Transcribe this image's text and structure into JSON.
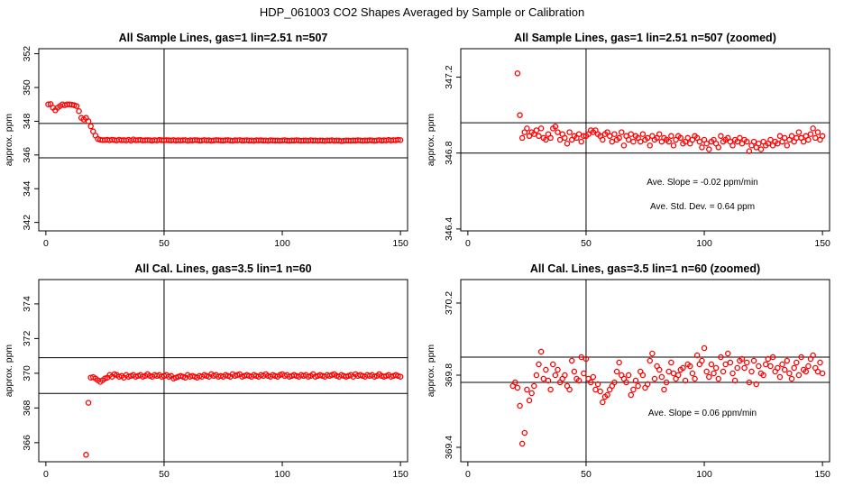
{
  "page_title": "HDP_061003  CO2 Shapes Averaged by Sample or Calibration",
  "colors": {
    "points": "#ff0000",
    "lines": "#000000",
    "axes": "#000000"
  },
  "chart_data": [
    {
      "type": "scatter",
      "title": "All Sample Lines, gas=1 lin=2.51 n=507",
      "ylabel": "approx. ppm",
      "xlim": [
        -3,
        153
      ],
      "ylim": [
        341.5,
        352.3
      ],
      "xticks": [
        0,
        50,
        100,
        150
      ],
      "yticks": [
        342,
        344,
        346,
        348,
        350,
        352
      ],
      "vline": 50,
      "hlines": [
        347.87,
        345.83
      ],
      "annotations": [],
      "x": [
        1,
        2,
        3,
        4,
        5,
        6,
        7,
        8,
        9,
        10,
        11,
        12,
        13,
        14,
        15,
        16,
        17,
        18,
        19,
        20,
        21,
        22,
        23,
        24,
        25,
        26,
        27,
        28,
        29,
        30,
        31,
        32,
        33,
        34,
        35,
        36,
        37,
        38,
        39,
        40,
        41,
        42,
        43,
        44,
        45,
        46,
        47,
        48,
        49,
        50,
        51,
        52,
        53,
        54,
        55,
        56,
        57,
        58,
        59,
        60,
        61,
        62,
        63,
        64,
        65,
        66,
        67,
        68,
        69,
        70,
        71,
        72,
        73,
        74,
        75,
        76,
        77,
        78,
        79,
        80,
        81,
        82,
        83,
        84,
        85,
        86,
        87,
        88,
        89,
        90,
        91,
        92,
        93,
        94,
        95,
        96,
        97,
        98,
        99,
        100,
        101,
        102,
        103,
        104,
        105,
        106,
        107,
        108,
        109,
        110,
        111,
        112,
        113,
        114,
        115,
        116,
        117,
        118,
        119,
        120,
        121,
        122,
        123,
        124,
        125,
        126,
        127,
        128,
        129,
        130,
        131,
        132,
        133,
        134,
        135,
        136,
        137,
        138,
        139,
        140,
        141,
        142,
        143,
        144,
        145,
        146,
        147,
        148,
        149,
        150
      ],
      "y": [
        349.0,
        349.02,
        348.8,
        348.65,
        348.8,
        348.9,
        349.0,
        348.95,
        349.0,
        349.0,
        348.98,
        348.95,
        348.9,
        348.6,
        348.2,
        348.1,
        348.2,
        348.0,
        347.7,
        347.4,
        347.15,
        346.95,
        346.9,
        346.88,
        346.88,
        346.9,
        346.87,
        346.9,
        346.88,
        346.86,
        346.9,
        346.87,
        346.88,
        346.86,
        346.9,
        346.85,
        346.92,
        346.87,
        346.88,
        346.89,
        346.86,
        346.87,
        346.88,
        346.87,
        346.85,
        346.88,
        346.86,
        346.89,
        346.87,
        346.87,
        346.88,
        346.87,
        346.86,
        346.88,
        346.85,
        346.87,
        346.86,
        346.87,
        346.88,
        346.84,
        346.87,
        346.86,
        346.88,
        346.87,
        346.85,
        346.86,
        346.88,
        346.86,
        346.87,
        346.84,
        346.86,
        346.88,
        346.87,
        346.86,
        346.85,
        346.87,
        346.88,
        346.86,
        346.84,
        346.87,
        346.86,
        346.88,
        346.85,
        346.86,
        346.87,
        346.85,
        346.86,
        346.84,
        346.87,
        346.86,
        346.87,
        346.85,
        346.86,
        346.84,
        346.87,
        346.86,
        346.85,
        346.86,
        346.84,
        346.86,
        346.87,
        346.85,
        346.84,
        346.86,
        346.85,
        346.87,
        346.86,
        346.84,
        346.85,
        346.86,
        346.84,
        346.87,
        346.85,
        346.86,
        346.84,
        346.86,
        346.85,
        346.83,
        346.86,
        346.85,
        346.87,
        346.84,
        346.86,
        346.85,
        346.82,
        346.84,
        346.86,
        346.85,
        346.84,
        346.86,
        346.85,
        346.87,
        346.86,
        346.84,
        346.86,
        346.85,
        346.87,
        346.86,
        346.84,
        346.86,
        346.88,
        346.85,
        346.87,
        346.86,
        346.89,
        346.86,
        346.88,
        346.87,
        346.9,
        346.88
      ]
    },
    {
      "type": "scatter",
      "title": "All Sample Lines, gas=1 lin=2.51 n=507 (zoomed)",
      "ylabel": "approx. ppm",
      "xlim": [
        -3,
        153
      ],
      "ylim": [
        346.39,
        347.35
      ],
      "xticks": [
        0,
        50,
        100,
        150
      ],
      "yticks": [
        346.4,
        346.8,
        347.2
      ],
      "vline": 50,
      "hlines": [
        346.96,
        346.8
      ],
      "annotations": [
        "Ave. Slope =  -0.02  ppm/min",
        "Ave. Std. Dev. =  0.64  ppm"
      ],
      "x": [
        21,
        22,
        23,
        24,
        25,
        26,
        27,
        28,
        29,
        30,
        31,
        32,
        33,
        34,
        35,
        36,
        37,
        38,
        39,
        40,
        41,
        42,
        43,
        44,
        45,
        46,
        47,
        48,
        49,
        50,
        51,
        52,
        53,
        54,
        55,
        56,
        57,
        58,
        59,
        60,
        61,
        62,
        63,
        64,
        65,
        66,
        67,
        68,
        69,
        70,
        71,
        72,
        73,
        74,
        75,
        76,
        77,
        78,
        79,
        80,
        81,
        82,
        83,
        84,
        85,
        86,
        87,
        88,
        89,
        90,
        91,
        92,
        93,
        94,
        95,
        96,
        97,
        98,
        99,
        100,
        101,
        102,
        103,
        104,
        105,
        106,
        107,
        108,
        109,
        110,
        111,
        112,
        113,
        114,
        115,
        116,
        117,
        118,
        119,
        120,
        121,
        122,
        123,
        124,
        125,
        126,
        127,
        128,
        129,
        130,
        131,
        132,
        133,
        134,
        135,
        136,
        137,
        138,
        139,
        140,
        141,
        142,
        143,
        144,
        145,
        146,
        147,
        148,
        149,
        150
      ],
      "y": [
        347.22,
        347.0,
        346.88,
        346.91,
        346.93,
        346.89,
        346.91,
        346.9,
        346.92,
        346.89,
        346.93,
        346.88,
        346.87,
        346.9,
        346.88,
        346.93,
        346.94,
        346.91,
        346.87,
        346.9,
        346.88,
        346.85,
        346.91,
        346.87,
        346.89,
        346.88,
        346.9,
        346.86,
        346.89,
        346.89,
        346.9,
        346.92,
        346.91,
        346.92,
        346.9,
        346.89,
        346.87,
        346.9,
        346.91,
        346.89,
        346.86,
        346.9,
        346.87,
        346.88,
        346.91,
        346.84,
        346.89,
        346.87,
        346.9,
        346.86,
        346.89,
        346.88,
        346.86,
        346.9,
        346.87,
        346.88,
        346.84,
        346.89,
        346.87,
        346.88,
        346.9,
        346.86,
        346.88,
        346.87,
        346.86,
        346.89,
        346.84,
        346.87,
        346.89,
        346.88,
        346.85,
        346.86,
        346.88,
        346.85,
        346.87,
        346.89,
        346.88,
        346.86,
        346.83,
        346.87,
        346.85,
        346.82,
        346.86,
        346.87,
        346.85,
        346.83,
        346.89,
        346.86,
        346.87,
        346.88,
        346.86,
        346.84,
        346.87,
        346.86,
        346.88,
        346.85,
        346.87,
        346.86,
        346.81,
        346.84,
        346.86,
        346.83,
        346.85,
        346.82,
        346.86,
        346.84,
        346.85,
        346.87,
        346.84,
        346.86,
        346.85,
        346.89,
        346.86,
        346.88,
        346.84,
        346.87,
        346.89,
        346.86,
        346.88,
        346.91,
        346.88,
        346.86,
        346.89,
        346.87,
        346.9,
        346.93,
        346.88,
        346.91,
        346.87,
        346.89
      ]
    },
    {
      "type": "scatter",
      "title": "All Cal. Lines, gas=3.5 lin=1 n=60",
      "ylabel": "approx. ppm",
      "xlim": [
        -3,
        153
      ],
      "ylim": [
        364.9,
        375.4
      ],
      "xticks": [
        0,
        50,
        100,
        150
      ],
      "yticks": [
        366,
        368,
        370,
        372,
        374
      ],
      "vline": 50,
      "hlines": [
        370.9,
        368.84
      ],
      "annotations": [],
      "x": [
        17,
        18,
        19,
        20,
        21,
        22,
        23,
        24,
        25,
        26,
        27,
        28,
        29,
        30,
        31,
        32,
        33,
        34,
        35,
        36,
        37,
        38,
        39,
        40,
        41,
        42,
        43,
        44,
        45,
        46,
        47,
        48,
        49,
        50,
        51,
        52,
        53,
        54,
        55,
        56,
        57,
        58,
        59,
        60,
        61,
        62,
        63,
        64,
        65,
        66,
        67,
        68,
        69,
        70,
        71,
        72,
        73,
        74,
        75,
        76,
        77,
        78,
        79,
        80,
        81,
        82,
        83,
        84,
        85,
        86,
        87,
        88,
        89,
        90,
        91,
        92,
        93,
        94,
        95,
        96,
        97,
        98,
        99,
        100,
        101,
        102,
        103,
        104,
        105,
        106,
        107,
        108,
        109,
        110,
        111,
        112,
        113,
        114,
        115,
        116,
        117,
        118,
        119,
        120,
        121,
        122,
        123,
        124,
        125,
        126,
        127,
        128,
        129,
        130,
        131,
        132,
        133,
        134,
        135,
        136,
        137,
        138,
        139,
        140,
        141,
        142,
        143,
        144,
        145,
        146,
        147,
        148,
        149,
        150
      ],
      "y": [
        365.3,
        368.3,
        369.75,
        369.78,
        369.7,
        369.6,
        369.5,
        369.6,
        369.7,
        369.75,
        369.9,
        369.8,
        369.95,
        369.9,
        369.8,
        369.85,
        369.75,
        369.9,
        369.8,
        369.85,
        369.9,
        369.8,
        369.85,
        369.9,
        369.8,
        369.85,
        369.95,
        369.85,
        369.8,
        369.9,
        369.85,
        369.9,
        369.8,
        369.85,
        369.9,
        369.8,
        369.85,
        369.7,
        369.75,
        369.8,
        369.85,
        369.8,
        369.75,
        369.9,
        369.8,
        369.85,
        369.8,
        369.75,
        369.85,
        369.8,
        369.9,
        369.85,
        369.8,
        369.95,
        369.85,
        369.9,
        369.8,
        369.85,
        369.8,
        369.9,
        369.85,
        369.8,
        369.95,
        369.85,
        369.9,
        369.95,
        369.8,
        369.85,
        369.9,
        369.85,
        369.8,
        369.9,
        369.85,
        369.8,
        369.9,
        369.85,
        369.95,
        369.85,
        369.8,
        369.9,
        369.85,
        369.8,
        369.9,
        369.95,
        369.85,
        369.9,
        369.8,
        369.85,
        369.9,
        369.85,
        369.8,
        369.9,
        369.85,
        369.9,
        369.8,
        369.85,
        369.95,
        369.8,
        369.85,
        369.9,
        369.85,
        369.8,
        369.9,
        369.85,
        369.9,
        369.95,
        369.85,
        369.8,
        369.9,
        369.85,
        369.8,
        369.85,
        369.9,
        369.8,
        369.95,
        369.85,
        369.9,
        369.85,
        369.8,
        369.9,
        369.85,
        369.9,
        369.8,
        369.85,
        369.95,
        369.85,
        369.8,
        369.85,
        369.9,
        369.8,
        369.85,
        369.9,
        369.85,
        369.8
      ]
    },
    {
      "type": "scatter",
      "title": "All Cal. Lines, gas=3.5 lin=1 n=60 (zoomed)",
      "ylabel": "approx. ppm",
      "xlim": [
        -3,
        153
      ],
      "ylim": [
        369.32,
        370.33
      ],
      "xticks": [
        0,
        50,
        100,
        150
      ],
      "yticks": [
        369.4,
        369.8,
        370.2
      ],
      "vline": 50,
      "hlines": [
        369.9,
        369.76
      ],
      "annotations": [
        "Ave. Slope =  0.06  ppm/min"
      ],
      "x": [
        19,
        20,
        21,
        22,
        23,
        24,
        25,
        26,
        27,
        28,
        29,
        30,
        31,
        32,
        33,
        34,
        35,
        36,
        37,
        38,
        39,
        40,
        41,
        42,
        43,
        44,
        45,
        46,
        47,
        48,
        49,
        50,
        51,
        52,
        53,
        54,
        55,
        56,
        57,
        58,
        59,
        60,
        61,
        62,
        63,
        64,
        65,
        66,
        67,
        68,
        69,
        70,
        71,
        72,
        73,
        74,
        75,
        76,
        77,
        78,
        79,
        80,
        81,
        82,
        83,
        84,
        85,
        86,
        87,
        88,
        89,
        90,
        91,
        92,
        93,
        94,
        95,
        96,
        97,
        98,
        99,
        100,
        101,
        102,
        103,
        104,
        105,
        106,
        107,
        108,
        109,
        110,
        111,
        112,
        113,
        114,
        115,
        116,
        117,
        118,
        119,
        120,
        121,
        122,
        123,
        124,
        125,
        126,
        127,
        128,
        129,
        130,
        131,
        132,
        133,
        134,
        135,
        136,
        137,
        138,
        139,
        140,
        141,
        142,
        143,
        144,
        145,
        146,
        147,
        148,
        149,
        150
      ],
      "y": [
        369.74,
        369.76,
        369.73,
        369.63,
        369.42,
        369.48,
        369.72,
        369.66,
        369.7,
        369.74,
        369.8,
        369.86,
        369.93,
        369.78,
        369.83,
        369.77,
        369.72,
        369.86,
        369.8,
        369.83,
        369.76,
        369.78,
        369.8,
        369.74,
        369.72,
        369.88,
        369.82,
        369.78,
        369.77,
        369.9,
        369.81,
        369.89,
        369.78,
        369.76,
        369.79,
        369.72,
        369.75,
        369.71,
        369.65,
        369.68,
        369.69,
        369.72,
        369.74,
        369.76,
        369.82,
        369.87,
        369.8,
        369.78,
        369.76,
        369.8,
        369.69,
        369.72,
        369.77,
        369.74,
        369.82,
        369.8,
        369.73,
        369.75,
        369.88,
        369.92,
        369.78,
        369.85,
        369.83,
        369.79,
        369.72,
        369.76,
        369.82,
        369.87,
        369.81,
        369.78,
        369.8,
        369.83,
        369.84,
        369.77,
        369.86,
        369.85,
        369.81,
        369.78,
        369.91,
        369.86,
        369.88,
        369.95,
        369.82,
        369.79,
        369.86,
        369.81,
        369.84,
        369.78,
        369.9,
        369.82,
        369.86,
        369.92,
        369.87,
        369.81,
        369.77,
        369.84,
        369.88,
        369.89,
        369.84,
        369.87,
        369.76,
        369.82,
        369.88,
        369.75,
        369.85,
        369.81,
        369.8,
        369.86,
        369.89,
        369.85,
        369.9,
        369.82,
        369.84,
        369.79,
        369.86,
        369.83,
        369.88,
        369.81,
        369.78,
        369.84,
        369.87,
        369.8,
        369.9,
        369.83,
        369.82,
        369.85,
        369.89,
        369.91,
        369.84,
        369.82,
        369.87,
        369.81
      ]
    }
  ]
}
